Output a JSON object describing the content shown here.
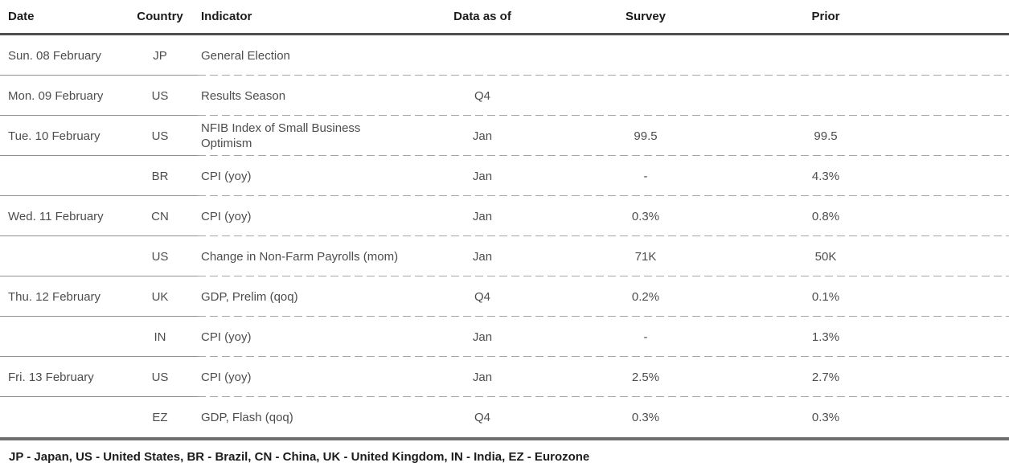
{
  "table": {
    "columns": [
      {
        "label": "Date"
      },
      {
        "label": "Country"
      },
      {
        "label": "Indicator"
      },
      {
        "label": "Data as of"
      },
      {
        "label": "Survey"
      },
      {
        "label": "Prior"
      }
    ],
    "rows": [
      {
        "date": "Sun. 08 February",
        "country": "JP",
        "indicator": "General Election",
        "data_as_of": "",
        "survey": "",
        "prior": ""
      },
      {
        "date": "Mon. 09 February",
        "country": "US",
        "indicator": "Results Season",
        "data_as_of": "Q4",
        "survey": "",
        "prior": ""
      },
      {
        "date": "Tue. 10 February",
        "country": "US",
        "indicator": "NFIB Index of Small Business Optimism",
        "data_as_of": "Jan",
        "survey": "99.5",
        "prior": "99.5"
      },
      {
        "date": "",
        "country": "BR",
        "indicator": "CPI (yoy)",
        "data_as_of": "Jan",
        "survey": "-",
        "prior": "4.3%"
      },
      {
        "date": "Wed. 11 February",
        "country": "CN",
        "indicator": "CPI (yoy)",
        "data_as_of": "Jan",
        "survey": "0.3%",
        "prior": "0.8%"
      },
      {
        "date": "",
        "country": "US",
        "indicator": "Change in Non-Farm Payrolls (mom)",
        "data_as_of": "Jan",
        "survey": "71K",
        "prior": "50K"
      },
      {
        "date": "Thu. 12 February",
        "country": "UK",
        "indicator": "GDP, Prelim (qoq)",
        "data_as_of": "Q4",
        "survey": "0.2%",
        "prior": "0.1%"
      },
      {
        "date": "",
        "country": "IN",
        "indicator": "CPI (yoy)",
        "data_as_of": "Jan",
        "survey": "-",
        "prior": "1.3%"
      },
      {
        "date": "Fri. 13 February",
        "country": "US",
        "indicator": "CPI (yoy)",
        "data_as_of": "Jan",
        "survey": "2.5%",
        "prior": "2.7%"
      },
      {
        "date": "",
        "country": "EZ",
        "indicator": "GDP, Flash (qoq)",
        "data_as_of": "Q4",
        "survey": "0.3%",
        "prior": "0.3%"
      }
    ],
    "legend": "JP - Japan, US - United States, BR - Brazil, CN - China, UK - United Kingdom, IN - India, EZ - Eurozone"
  }
}
